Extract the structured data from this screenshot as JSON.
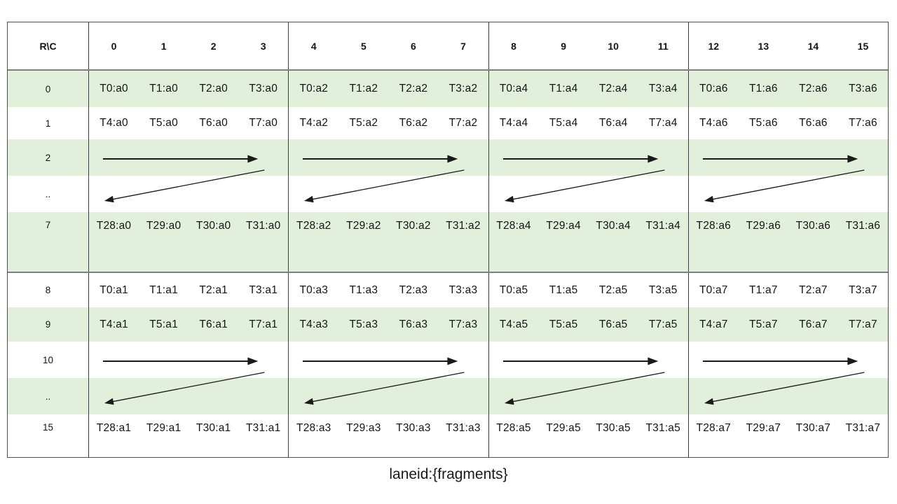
{
  "caption": "laneid:{fragments}",
  "colors": {
    "row_shade": "#e2efda",
    "row_white": "#ffffff",
    "arrow": "#1a1a1a",
    "border_outer": "#4f4f4f",
    "border_strong": "#7f7f7f",
    "border_line": "#3e3e3e"
  },
  "table": {
    "corner_label": "R\\C",
    "header_groups": [
      [
        "0",
        "1",
        "2",
        "3"
      ],
      [
        "4",
        "5",
        "6",
        "7"
      ],
      [
        "8",
        "9",
        "10",
        "11"
      ],
      [
        "12",
        "13",
        "14",
        "15"
      ]
    ],
    "blocks": [
      {
        "rows": [
          {
            "label": "0",
            "cells": [
              [
                "T0:a0",
                "T1:a0",
                "T2:a0",
                "T3:a0"
              ],
              [
                "T0:a2",
                "T1:a2",
                "T2:a2",
                "T3:a2"
              ],
              [
                "T0:a4",
                "T1:a4",
                "T2:a4",
                "T3:a4"
              ],
              [
                "T0:a6",
                "T1:a6",
                "T2:a6",
                "T3:a6"
              ]
            ]
          },
          {
            "label": "1",
            "cells": [
              [
                "T4:a0",
                "T5:a0",
                "T6:a0",
                "T7:a0"
              ],
              [
                "T4:a2",
                "T5:a2",
                "T6:a2",
                "T7:a2"
              ],
              [
                "T4:a4",
                "T5:a4",
                "T6:a4",
                "T7:a4"
              ],
              [
                "T4:a6",
                "T5:a6",
                "T6:a6",
                "T7:a6"
              ]
            ]
          },
          {
            "label": "2",
            "arrow": "right"
          },
          {
            "label": "..",
            "arrow": "wrap-left"
          },
          {
            "label": "7",
            "cells": [
              [
                "T28:a0",
                "T29:a0",
                "T30:a0",
                "T31:a0"
              ],
              [
                "T28:a2",
                "T29:a2",
                "T30:a2",
                "T31:a2"
              ],
              [
                "T28:a4",
                "T29:a4",
                "T30:a4",
                "T31:a4"
              ],
              [
                "T28:a6",
                "T29:a6",
                "T30:a6",
                "T31:a6"
              ]
            ]
          }
        ]
      },
      {
        "rows": [
          {
            "label": "8",
            "cells": [
              [
                "T0:a1",
                "T1:a1",
                "T2:a1",
                "T3:a1"
              ],
              [
                "T0:a3",
                "T1:a3",
                "T2:a3",
                "T3:a3"
              ],
              [
                "T0:a5",
                "T1:a5",
                "T2:a5",
                "T3:a5"
              ],
              [
                "T0:a7",
                "T1:a7",
                "T2:a7",
                "T3:a7"
              ]
            ]
          },
          {
            "label": "9",
            "cells": [
              [
                "T4:a1",
                "T5:a1",
                "T6:a1",
                "T7:a1"
              ],
              [
                "T4:a3",
                "T5:a3",
                "T6:a3",
                "T7:a3"
              ],
              [
                "T4:a5",
                "T5:a5",
                "T6:a5",
                "T7:a5"
              ],
              [
                "T4:a7",
                "T5:a7",
                "T6:a7",
                "T7:a7"
              ]
            ]
          },
          {
            "label": "10",
            "arrow": "right"
          },
          {
            "label": "..",
            "arrow": "wrap-left"
          },
          {
            "label": "15",
            "cells": [
              [
                "T28:a1",
                "T29:a1",
                "T30:a1",
                "T31:a1"
              ],
              [
                "T28:a3",
                "T29:a3",
                "T30:a3",
                "T31:a3"
              ],
              [
                "T28:a5",
                "T29:a5",
                "T30:a5",
                "T31:a5"
              ],
              [
                "T28:a7",
                "T29:a7",
                "T30:a7",
                "T31:a7"
              ]
            ]
          }
        ]
      }
    ]
  }
}
